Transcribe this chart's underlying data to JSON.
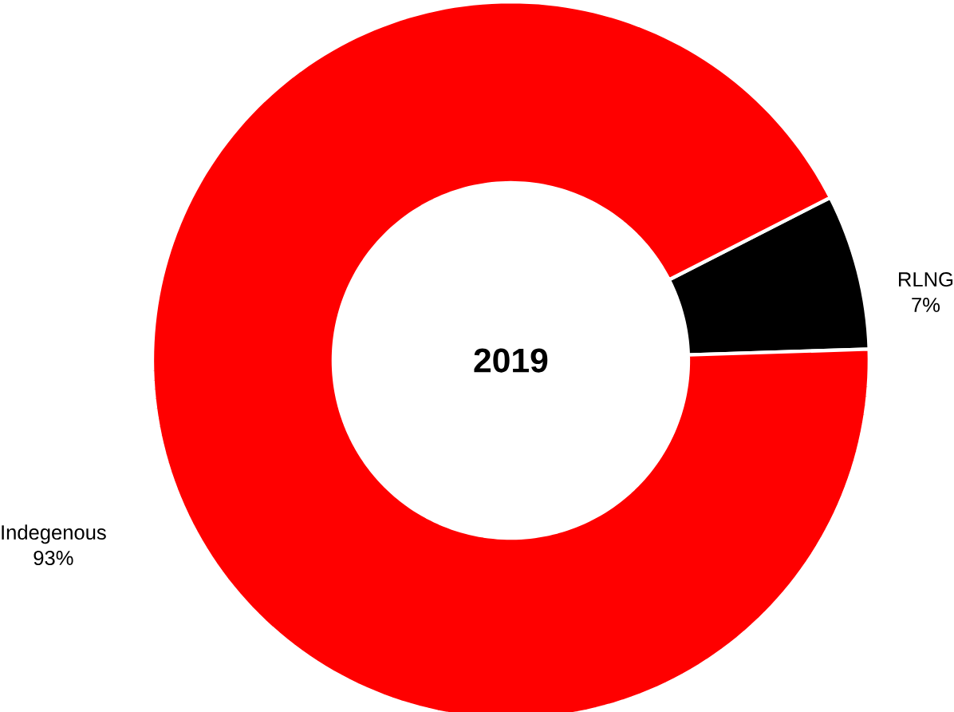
{
  "chart_data": {
    "type": "donut",
    "title": "2019",
    "categories": [
      "RLNG",
      "Indegenous"
    ],
    "values": [
      7,
      93
    ],
    "value_labels": [
      "7%",
      "93%"
    ],
    "colors": [
      "#000000",
      "#ff0000"
    ]
  }
}
